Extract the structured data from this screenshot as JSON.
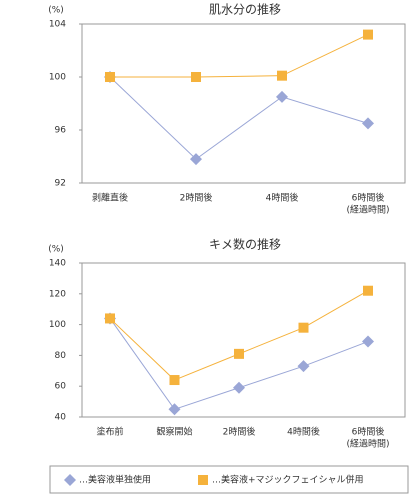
{
  "chart_data": [
    {
      "type": "line",
      "title": "肌水分の推移",
      "y_unit": "(%)",
      "categories": [
        "剥離直後",
        "2時間後",
        "4時間後",
        "6時間後"
      ],
      "x_note": "(経過時間)",
      "ylim": [
        92,
        104
      ],
      "yticks": [
        92,
        96,
        100,
        104
      ],
      "series": [
        {
          "name": "…美容液単独使用",
          "color": "#9aa6d6",
          "marker": "diamond",
          "values": [
            100,
            93.8,
            98.5,
            96.5
          ]
        },
        {
          "name": "…美容液+マジックフェイシャル併用",
          "color": "#f5b23c",
          "marker": "square",
          "values": [
            100,
            100,
            100.1,
            103.2
          ]
        }
      ]
    },
    {
      "type": "line",
      "title": "キメ数の推移",
      "y_unit": "(%)",
      "categories": [
        "塗布前",
        "観察開始",
        "2時間後",
        "4時間後",
        "6時間後"
      ],
      "x_note": "(経過時間)",
      "ylim": [
        40,
        140
      ],
      "yticks": [
        40,
        60,
        80,
        100,
        120,
        140
      ],
      "series": [
        {
          "color": "#9aa6d6",
          "marker": "diamond",
          "values": [
            104,
            45,
            59,
            73,
            89
          ]
        },
        {
          "color": "#f5b23c",
          "marker": "square",
          "values": [
            104,
            64,
            81,
            98,
            122
          ]
        }
      ]
    }
  ]
}
